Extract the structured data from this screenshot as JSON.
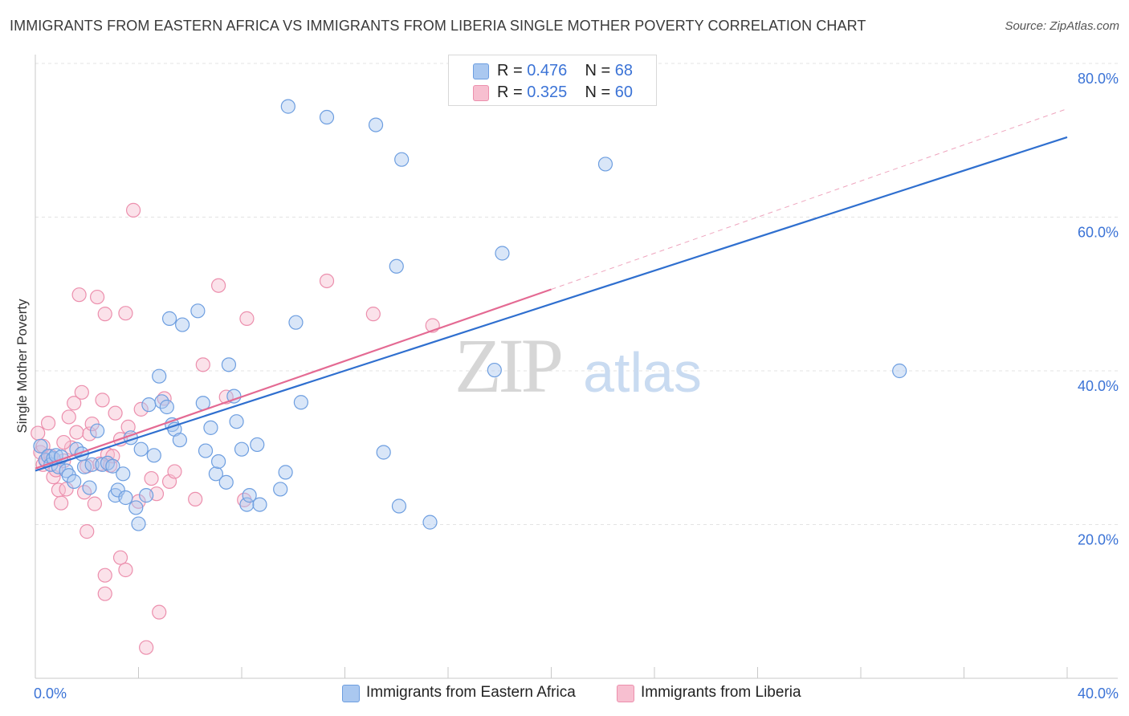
{
  "header": {
    "title": "IMMIGRANTS FROM EASTERN AFRICA VS IMMIGRANTS FROM LIBERIA SINGLE MOTHER POVERTY CORRELATION CHART",
    "source": "Source: ZipAtlas.com"
  },
  "legend": {
    "series1": {
      "r_label": "R =",
      "r_value": "0.476",
      "n_label": "N =",
      "n_value": "68"
    },
    "series2": {
      "r_label": "R =",
      "r_value": "0.325",
      "n_label": "N =",
      "n_value": "60"
    }
  },
  "watermark": {
    "zip": "ZIP",
    "atlas": "atlas"
  },
  "colors": {
    "blue_fill": "#aac8f0",
    "blue_stroke": "#6d9ee0",
    "blue_line": "#2f6fcf",
    "pink_fill": "#f7bfd0",
    "pink_stroke": "#ec8fad",
    "pink_line": "#e46a93",
    "tick_label": "#3b73d6",
    "grid": "#e3e3e3"
  },
  "chart_data": {
    "type": "scatter",
    "title": "IMMIGRANTS FROM EASTERN AFRICA VS IMMIGRANTS FROM LIBERIA SINGLE MOTHER POVERTY CORRELATION CHART",
    "xlabel": "",
    "ylabel": "Single Mother Poverty",
    "xlim": [
      0,
      40
    ],
    "ylim": [
      0,
      80
    ],
    "x_tick_labels": [
      "0.0%",
      "40.0%"
    ],
    "y_ticks": [
      20,
      40,
      60,
      80
    ],
    "y_tick_labels": [
      "20.0%",
      "40.0%",
      "60.0%",
      "80.0%"
    ],
    "grid": true,
    "legend_position": "top-center",
    "series": [
      {
        "name": "Immigrants from Eastern Africa",
        "r": 0.476,
        "n": 68,
        "trend": {
          "x": [
            0,
            40
          ],
          "y": [
            27.0,
            70.4
          ]
        },
        "points": [
          [
            0.2,
            30.2
          ],
          [
            0.4,
            28.4
          ],
          [
            0.5,
            28.9
          ],
          [
            0.6,
            27.8
          ],
          [
            0.7,
            28.6
          ],
          [
            0.8,
            29.0
          ],
          [
            0.9,
            27.5
          ],
          [
            1.0,
            28.8
          ],
          [
            1.2,
            27.0
          ],
          [
            1.3,
            26.4
          ],
          [
            1.5,
            25.6
          ],
          [
            1.6,
            29.8
          ],
          [
            1.8,
            29.2
          ],
          [
            1.9,
            27.5
          ],
          [
            2.1,
            24.8
          ],
          [
            2.2,
            27.8
          ],
          [
            2.4,
            32.2
          ],
          [
            2.6,
            27.8
          ],
          [
            2.8,
            28.0
          ],
          [
            3.0,
            27.6
          ],
          [
            3.1,
            23.8
          ],
          [
            3.2,
            24.5
          ],
          [
            3.4,
            26.6
          ],
          [
            3.5,
            23.5
          ],
          [
            3.7,
            31.3
          ],
          [
            3.9,
            22.2
          ],
          [
            4.0,
            20.1
          ],
          [
            4.1,
            29.8
          ],
          [
            4.3,
            23.8
          ],
          [
            4.4,
            35.6
          ],
          [
            4.6,
            29.0
          ],
          [
            4.8,
            39.3
          ],
          [
            4.9,
            36.0
          ],
          [
            5.1,
            35.3
          ],
          [
            5.3,
            33.0
          ],
          [
            5.4,
            32.4
          ],
          [
            5.6,
            31.0
          ],
          [
            5.7,
            46.0
          ],
          [
            5.2,
            46.8
          ],
          [
            6.3,
            47.8
          ],
          [
            6.5,
            35.8
          ],
          [
            6.6,
            29.6
          ],
          [
            6.8,
            32.6
          ],
          [
            7.0,
            26.6
          ],
          [
            7.1,
            28.2
          ],
          [
            7.4,
            25.5
          ],
          [
            7.5,
            40.8
          ],
          [
            7.7,
            36.7
          ],
          [
            7.8,
            33.4
          ],
          [
            8.0,
            29.8
          ],
          [
            8.2,
            22.6
          ],
          [
            8.3,
            23.8
          ],
          [
            8.6,
            30.4
          ],
          [
            8.7,
            22.6
          ],
          [
            9.5,
            24.6
          ],
          [
            9.7,
            26.8
          ],
          [
            10.1,
            46.3
          ],
          [
            10.3,
            35.9
          ],
          [
            9.8,
            74.4
          ],
          [
            11.3,
            73.0
          ],
          [
            13.2,
            72.0
          ],
          [
            14.2,
            67.5
          ],
          [
            13.5,
            29.4
          ],
          [
            14.1,
            22.4
          ],
          [
            15.3,
            20.3
          ],
          [
            14.0,
            53.6
          ],
          [
            17.8,
            40.1
          ],
          [
            18.1,
            55.3
          ],
          [
            22.1,
            66.9
          ],
          [
            33.5,
            40.0
          ]
        ]
      },
      {
        "name": "Immigrants from Liberia",
        "r": 0.325,
        "n": 60,
        "trend": {
          "x": [
            0,
            20
          ],
          "y": [
            27.3,
            50.6
          ]
        },
        "trend_extension": {
          "x": [
            20,
            40
          ],
          "y": [
            50.6,
            74.1
          ]
        },
        "points": [
          [
            0.1,
            31.9
          ],
          [
            0.2,
            29.4
          ],
          [
            0.3,
            27.8
          ],
          [
            0.4,
            28.3
          ],
          [
            0.5,
            33.2
          ],
          [
            0.6,
            28.9
          ],
          [
            0.7,
            26.2
          ],
          [
            0.8,
            27.1
          ],
          [
            0.9,
            24.5
          ],
          [
            1.0,
            22.8
          ],
          [
            1.1,
            28.3
          ],
          [
            1.2,
            24.6
          ],
          [
            1.3,
            34.0
          ],
          [
            1.4,
            30.0
          ],
          [
            1.5,
            35.8
          ],
          [
            1.6,
            32.0
          ],
          [
            1.7,
            49.9
          ],
          [
            1.8,
            37.2
          ],
          [
            1.9,
            24.2
          ],
          [
            2.0,
            27.6
          ],
          [
            2.1,
            31.8
          ],
          [
            2.2,
            33.1
          ],
          [
            2.3,
            22.7
          ],
          [
            2.0,
            19.1
          ],
          [
            2.4,
            49.6
          ],
          [
            2.5,
            27.9
          ],
          [
            2.6,
            36.2
          ],
          [
            2.7,
            47.4
          ],
          [
            2.8,
            29.1
          ],
          [
            2.9,
            27.7
          ],
          [
            2.7,
            13.4
          ],
          [
            2.7,
            11.0
          ],
          [
            3.0,
            28.9
          ],
          [
            3.1,
            34.5
          ],
          [
            3.3,
            31.1
          ],
          [
            3.3,
            15.7
          ],
          [
            3.5,
            47.5
          ],
          [
            3.5,
            14.1
          ],
          [
            3.6,
            32.7
          ],
          [
            3.8,
            60.9
          ],
          [
            4.0,
            23.0
          ],
          [
            4.1,
            35.0
          ],
          [
            4.3,
            4.0
          ],
          [
            4.5,
            26.0
          ],
          [
            4.7,
            24.0
          ],
          [
            4.8,
            8.6
          ],
          [
            5.0,
            36.4
          ],
          [
            5.2,
            25.6
          ],
          [
            5.4,
            26.9
          ],
          [
            6.2,
            23.3
          ],
          [
            6.5,
            40.8
          ],
          [
            7.1,
            51.1
          ],
          [
            7.4,
            36.6
          ],
          [
            8.1,
            23.2
          ],
          [
            8.2,
            46.8
          ],
          [
            11.3,
            51.7
          ],
          [
            13.1,
            47.4
          ],
          [
            15.4,
            45.9
          ],
          [
            1.1,
            30.7
          ],
          [
            0.3,
            30.2
          ]
        ]
      }
    ]
  },
  "bottom_legend": {
    "item1": "Immigrants from Eastern Africa",
    "item2": "Immigrants from Liberia"
  }
}
